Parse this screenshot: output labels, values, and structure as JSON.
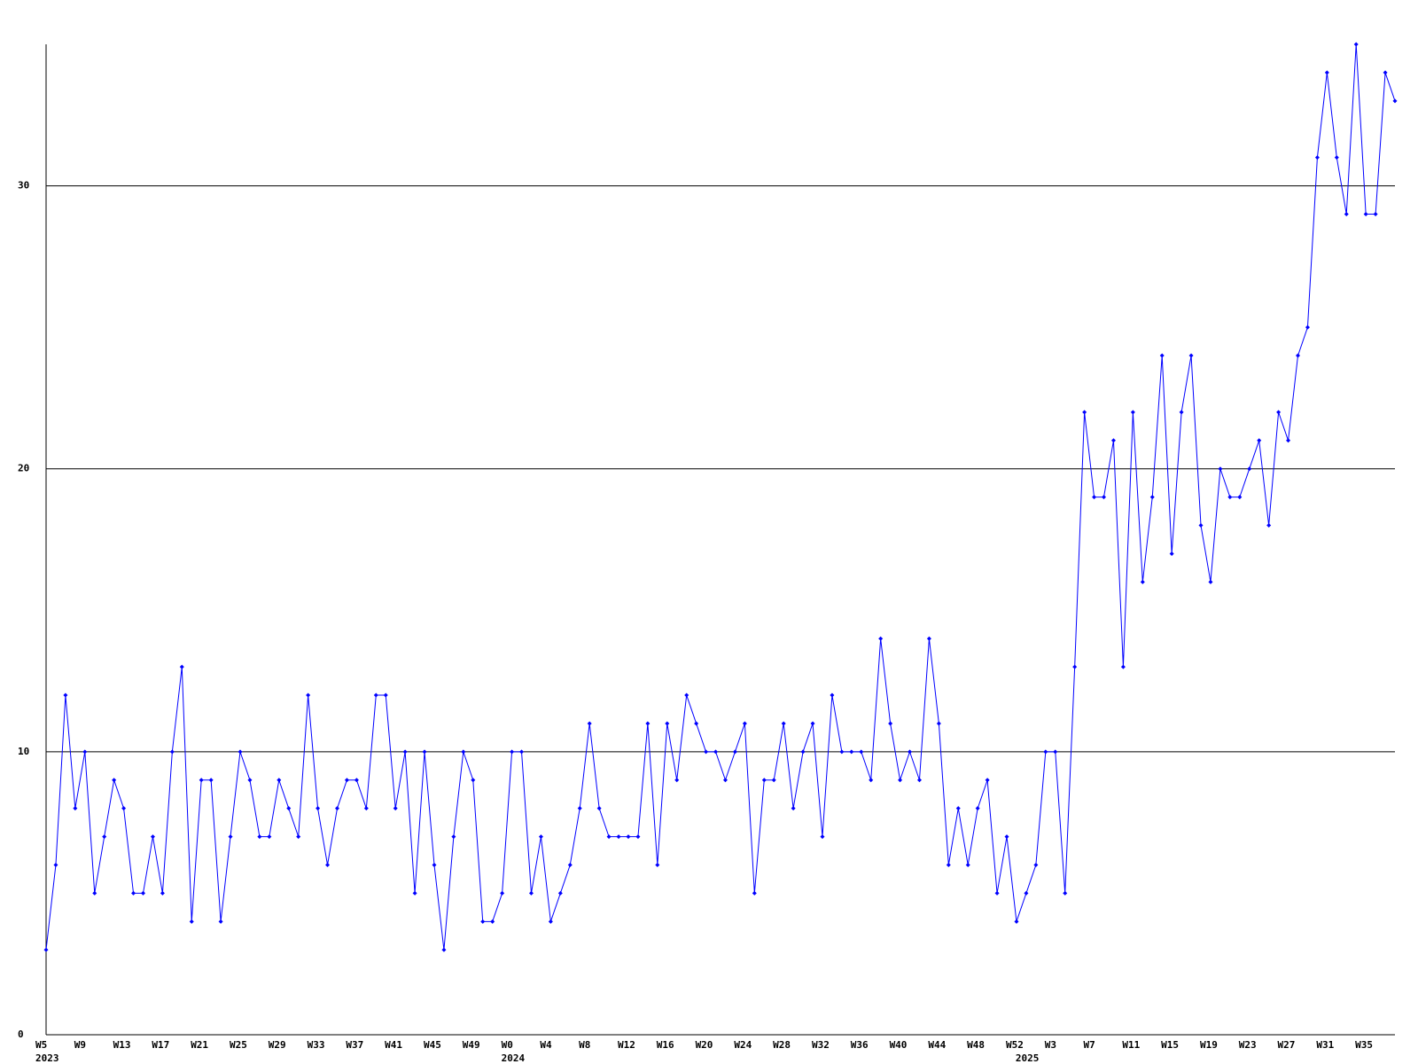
{
  "chart_data": {
    "type": "line",
    "categories": [
      "W5",
      null,
      null,
      null,
      "W9",
      null,
      null,
      null,
      "W13",
      null,
      null,
      null,
      "W17",
      null,
      null,
      null,
      "W21",
      null,
      null,
      null,
      "W25",
      null,
      null,
      null,
      "W29",
      null,
      null,
      null,
      "W33",
      null,
      null,
      null,
      "W37",
      null,
      null,
      null,
      "W41",
      null,
      null,
      null,
      "W45",
      null,
      null,
      null,
      "W49",
      null,
      null,
      null,
      "W0",
      null,
      null,
      null,
      "W4",
      null,
      null,
      null,
      "W8",
      null,
      null,
      null,
      "W12",
      null,
      null,
      null,
      "W16",
      null,
      null,
      null,
      "W20",
      null,
      null,
      null,
      "W24",
      null,
      null,
      null,
      "W28",
      null,
      null,
      null,
      "W32",
      null,
      null,
      null,
      "W36",
      null,
      null,
      null,
      "W40",
      null,
      null,
      null,
      "W44",
      null,
      null,
      null,
      "W48",
      null,
      null,
      null,
      "W52",
      null,
      null,
      null,
      "W3",
      null,
      null,
      null,
      "W7",
      null,
      null,
      null,
      "W11",
      null,
      null,
      null,
      "W15",
      null,
      null,
      null,
      "W19",
      null,
      null,
      null,
      "W23",
      null,
      null,
      null,
      "W27",
      null,
      null,
      null,
      "W31",
      null,
      null,
      null,
      "W35",
      null,
      null,
      null
    ],
    "category_years": [
      "2023",
      null,
      null,
      null,
      null,
      null,
      null,
      null,
      null,
      null,
      null,
      null,
      null,
      null,
      null,
      null,
      null,
      null,
      null,
      null,
      null,
      null,
      null,
      null,
      null,
      null,
      null,
      null,
      null,
      null,
      null,
      null,
      null,
      null,
      null,
      null,
      null,
      null,
      null,
      null,
      null,
      null,
      null,
      null,
      null,
      null,
      null,
      null,
      "2024",
      null,
      null,
      null,
      null,
      null,
      null,
      null,
      null,
      null,
      null,
      null,
      null,
      null,
      null,
      null,
      null,
      null,
      null,
      null,
      null,
      null,
      null,
      null,
      null,
      null,
      null,
      null,
      null,
      null,
      null,
      null,
      null,
      null,
      null,
      null,
      null,
      null,
      null,
      null,
      null,
      null,
      null,
      null,
      null,
      null,
      null,
      null,
      null,
      null,
      null,
      null,
      null,
      "2025",
      null,
      null,
      null,
      null,
      null,
      null,
      null,
      null,
      null,
      null,
      null,
      null,
      null,
      null,
      null,
      null,
      null,
      null,
      null,
      null,
      null,
      null,
      null,
      null,
      null,
      null,
      null,
      null,
      null,
      null,
      null,
      null,
      null,
      null,
      null,
      null,
      null,
      null
    ],
    "values": [
      3,
      6,
      12,
      8,
      10,
      5,
      7,
      9,
      8,
      5,
      5,
      7,
      5,
      10,
      13,
      4,
      9,
      9,
      4,
      7,
      10,
      9,
      7,
      7,
      9,
      8,
      7,
      12,
      8,
      6,
      8,
      9,
      9,
      8,
      12,
      12,
      8,
      10,
      5,
      10,
      6,
      3,
      7,
      10,
      9,
      4,
      4,
      5,
      10,
      10,
      5,
      7,
      4,
      5,
      6,
      8,
      11,
      8,
      7,
      7,
      7,
      7,
      11,
      6,
      11,
      9,
      12,
      11,
      10,
      10,
      9,
      10,
      11,
      5,
      9,
      9,
      11,
      8,
      10,
      11,
      7,
      12,
      10,
      10,
      10,
      9,
      14,
      11,
      9,
      10,
      9,
      14,
      11,
      6,
      8,
      6,
      8,
      9,
      5,
      7,
      4,
      5,
      6,
      10,
      10,
      5,
      13,
      22,
      19,
      19,
      21,
      13,
      22,
      16,
      19,
      24,
      17,
      22,
      24,
      18,
      16,
      20,
      19,
      19,
      20,
      21,
      18,
      22,
      21,
      24,
      25,
      31,
      34,
      31,
      29,
      35,
      29,
      29,
      34,
      33
    ],
    "color": "#0000ff",
    "ylim": [
      0,
      35
    ],
    "yticks": [
      0,
      10,
      20,
      30
    ],
    "grid": true
  }
}
